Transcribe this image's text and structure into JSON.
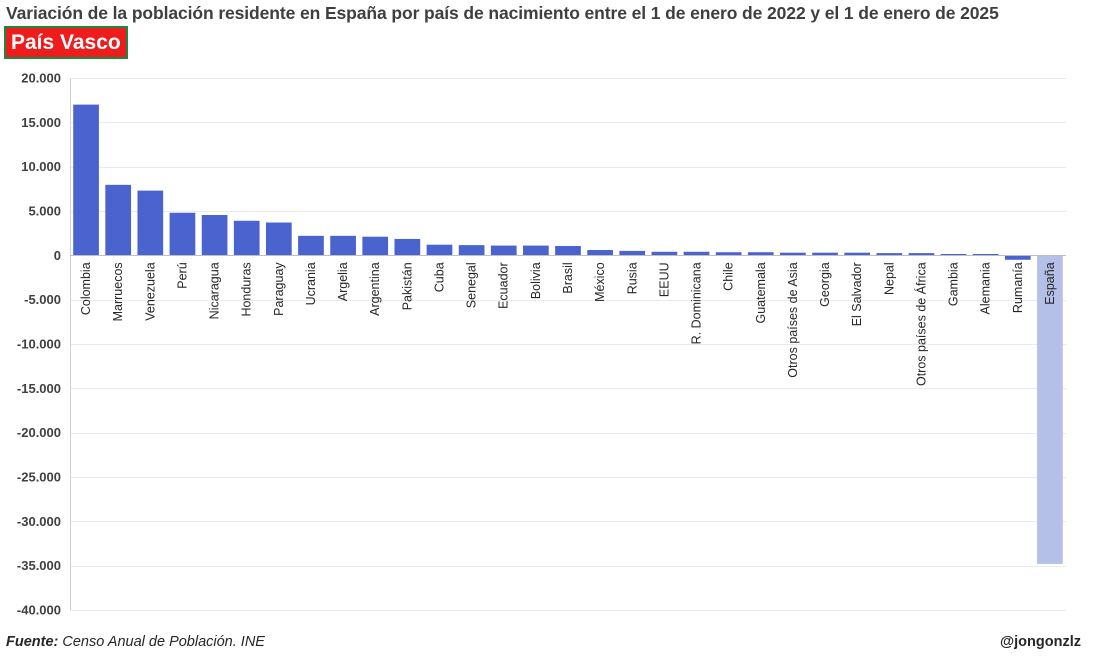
{
  "title": "Variación de la población residente en España por país de nacimiento entre el 1 de enero de 2022 y el 1 de enero de 2025",
  "region_badge": "País Vasco",
  "footer": {
    "source_label": "Fuente:",
    "source_text": "Censo Anual de Población. INE",
    "credit": "@jongonzlz"
  },
  "colors": {
    "bar": "#4a63cf",
    "bar_highlight": "#b4c0e8",
    "badge_bg": "#ee1c1c",
    "badge_border": "#1a8a3c",
    "gridline": "#ebebeb"
  },
  "chart_data": {
    "type": "bar",
    "title": "Variación de la población residente en España por país de nacimiento entre el 1 de enero de 2022 y el 1 de enero de 2025",
    "xlabel": "",
    "ylabel": "",
    "ylim": [
      -40000,
      20000
    ],
    "yticks": [
      20000,
      15000,
      10000,
      5000,
      0,
      -5000,
      -10000,
      -15000,
      -20000,
      -25000,
      -30000,
      -35000,
      -40000
    ],
    "ytick_labels": [
      "20.000",
      "15.000",
      "10.000",
      "5.000",
      "0",
      "-5.000",
      "-10.000",
      "-15.000",
      "-20.000",
      "-25.000",
      "-30.000",
      "-35.000",
      "-40.000"
    ],
    "grid": true,
    "categories": [
      "Colombia",
      "Marruecos",
      "Venezuela",
      "Perú",
      "Nicaragua",
      "Honduras",
      "Paraguay",
      "Ucrania",
      "Argelia",
      "Argentina",
      "Pakistán",
      "Cuba",
      "Senegal",
      "Ecuador",
      "Bolivia",
      "Brasil",
      "México",
      "Rusia",
      "EEUU",
      "R. Dominicana",
      "Chile",
      "Guatemala",
      "Otros países de Asia",
      "Georgia",
      "El Salvador",
      "Nepal",
      "Otros países de África",
      "Gambia",
      "Alemania",
      "Rumanía",
      "España"
    ],
    "values": [
      17000,
      7950,
      7300,
      4800,
      4550,
      3900,
      3700,
      2200,
      2200,
      2100,
      1850,
      1200,
      1150,
      1100,
      1100,
      1050,
      600,
      500,
      400,
      400,
      350,
      350,
      300,
      300,
      300,
      250,
      250,
      150,
      150,
      -500,
      -34800
    ],
    "highlight": "España"
  }
}
